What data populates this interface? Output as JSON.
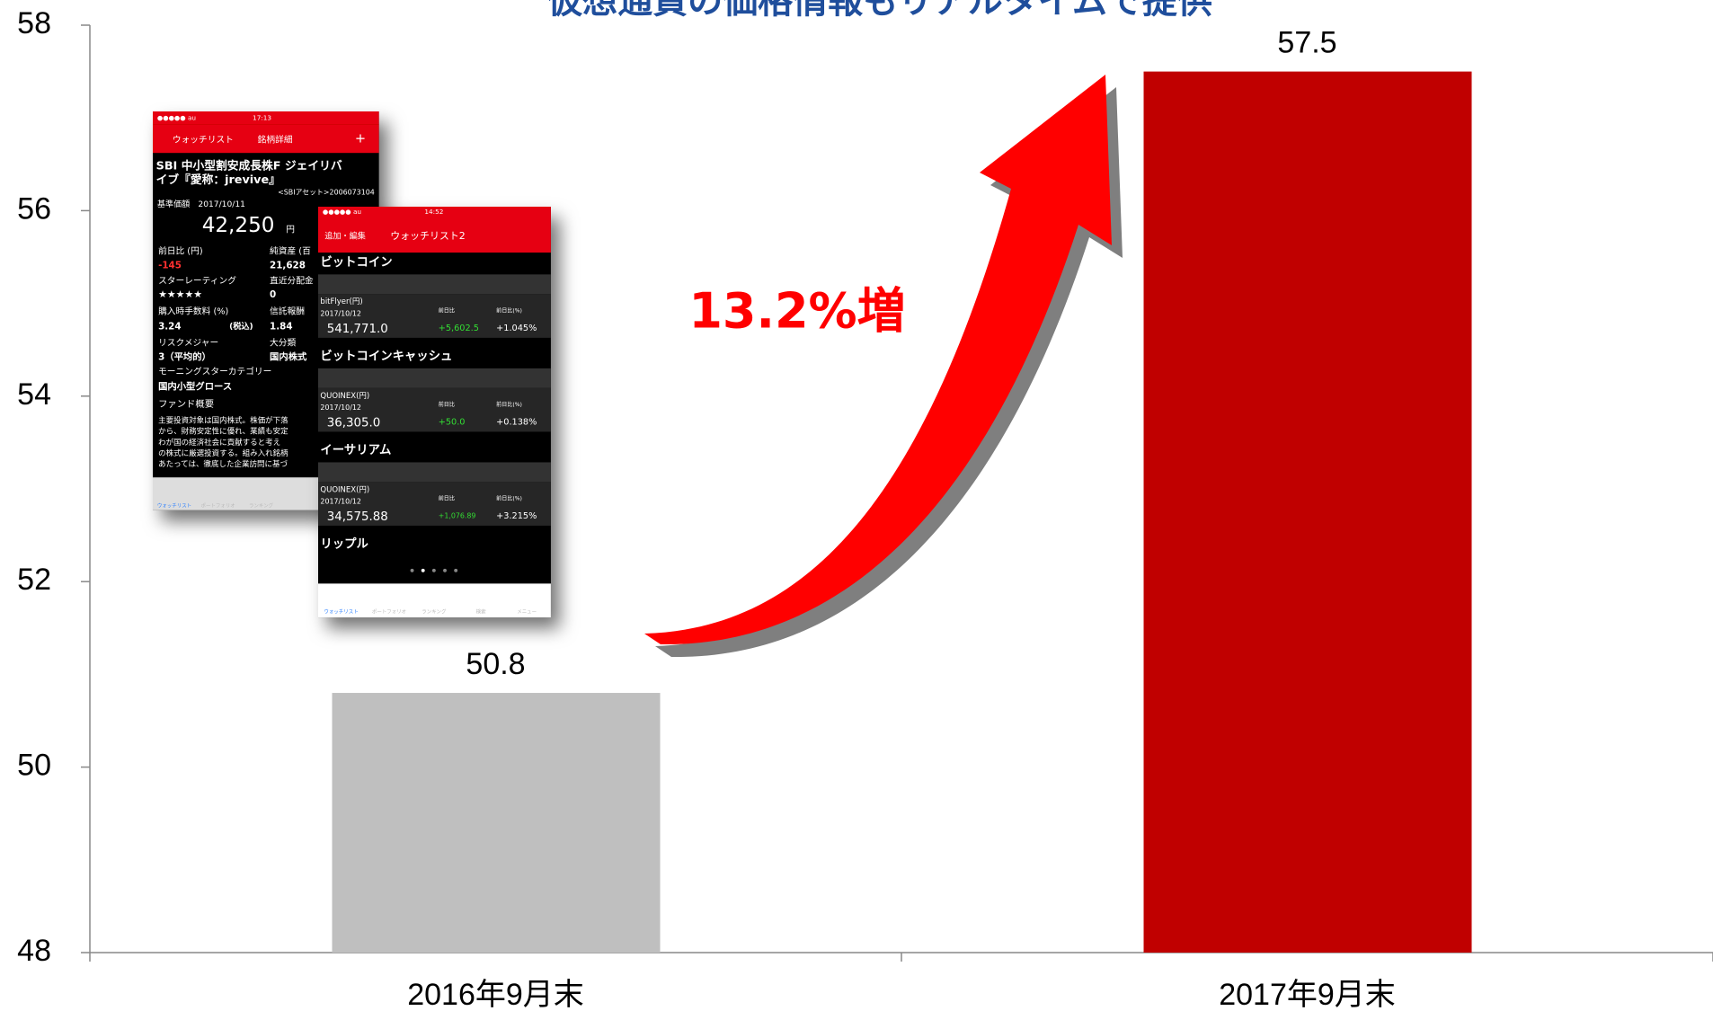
{
  "chart_data": {
    "type": "bar",
    "title": "仮想通貨の価格情報もリアルタイムで提供",
    "categories": [
      "2016年9月末",
      "2017年9月末"
    ],
    "values": [
      50.8,
      57.5
    ],
    "colors": [
      "#bfbfbf",
      "#c00000"
    ],
    "ylim": [
      48,
      58
    ],
    "yticks": [
      48,
      50,
      52,
      54,
      56,
      58
    ],
    "grid": false,
    "annotations": [
      "13.2%増"
    ]
  },
  "screenshots": [
    {
      "texts": [
        "●●●●● au",
        "17:13",
        "ウォッチリスト",
        "銘柄詳細",
        "+",
        "SBI 中小型割安成長株F ジェイリバ",
        "イブ『愛称：jrevive』",
        "<SBIアセット>2006073104",
        "基準価額　2017/10/11",
        "42,250",
        "円",
        "前日比 (円)",
        "純資産 (百",
        "-145",
        "21,628",
        "スターレーティング",
        "直近分配金",
        "★★★★★",
        "0",
        "購入時手数料 (%)",
        "信託報酬",
        "3.24",
        "(税込)",
        "1.84",
        "リスクメジャー",
        "大分類",
        "3（平均的）",
        "国内株式",
        "モーニングスターカテゴリー",
        "国内小型グロース",
        "ファンド概要",
        "主要投資対象は国内株式。株価が下落",
        "から、財務安定性に優れ、業績も安定",
        "わが国の経済社会に貢献すると考え",
        "の株式に厳選投資する。組み入れ銘柄",
        "あたっては、徹底した企業訪問に基づ",
        "ウォッチリスト",
        "ポートフォリオ",
        "ランキング"
      ]
    },
    {
      "texts": [
        "●●●●● au",
        "14:52",
        "追加・編集",
        "ウォッチリスト2",
        "ビットコイン",
        "bitFlyer(円)",
        "2017/10/12",
        "541,771.0",
        "前日比",
        "+5,602.5",
        "前日比(%)",
        "+1.045%",
        "ビットコインキャッシュ",
        "QUOINEX(円)",
        "2017/10/12",
        "36,305.0",
        "前日比",
        "+50.0",
        "前日比(%)",
        "+0.138%",
        "イーサリアム",
        "QUOINEX(円)",
        "2017/10/12",
        "34,575.88",
        "前日比",
        "+1,076.89",
        "前日比(%)",
        "+3.215%",
        "リップル",
        "ウォッチリスト",
        "ポートフォリオ",
        "ランキング",
        "検索",
        "メニュー"
      ]
    }
  ]
}
